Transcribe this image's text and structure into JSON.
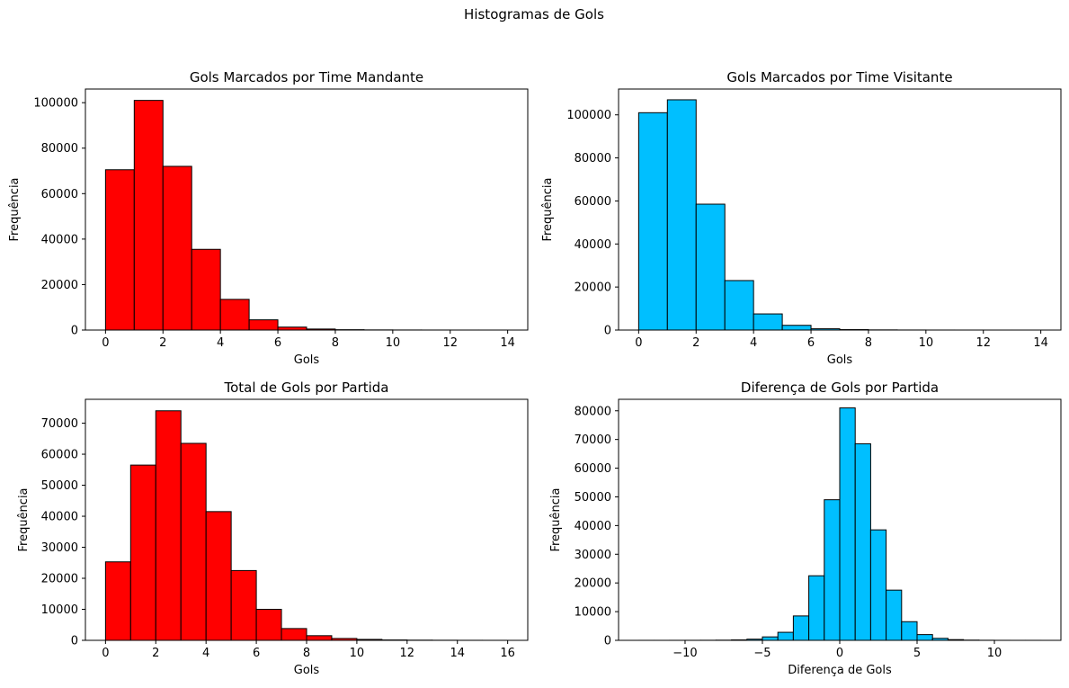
{
  "figure": {
    "suptitle": "Histogramas de Gols"
  },
  "chart_data": [
    {
      "type": "bar",
      "title": "Gols Marcados por Time Mandante",
      "xlabel": "Gols",
      "ylabel": "Frequência",
      "color": "#ff0000",
      "edgecolor": "#000000",
      "bins": [
        [
          0,
          1
        ],
        [
          1,
          2
        ],
        [
          2,
          3
        ],
        [
          3,
          4
        ],
        [
          4,
          5
        ],
        [
          5,
          6
        ],
        [
          6,
          7
        ],
        [
          7,
          8
        ],
        [
          8,
          9
        ],
        [
          9,
          10
        ],
        [
          10,
          11
        ],
        [
          11,
          12
        ],
        [
          12,
          13
        ],
        [
          13,
          14
        ]
      ],
      "values": [
        70500,
        101000,
        72000,
        35500,
        13500,
        4500,
        1300,
        450,
        150,
        60,
        30,
        15,
        8,
        5
      ],
      "xlim": [
        -0.7,
        14.7
      ],
      "ylim": [
        0,
        106000
      ],
      "xticks": [
        0,
        2,
        4,
        6,
        8,
        10,
        12,
        14
      ],
      "xtick_labels": [
        "0",
        "2",
        "4",
        "6",
        "8",
        "10",
        "12",
        "14"
      ],
      "yticks": [
        0,
        20000,
        40000,
        60000,
        80000,
        100000
      ],
      "ytick_labels": [
        "0",
        "20000",
        "40000",
        "60000",
        "80000",
        "100000"
      ]
    },
    {
      "type": "bar",
      "title": "Gols Marcados por Time Visitante",
      "xlabel": "Gols",
      "ylabel": "Frequência",
      "color": "#00bfff",
      "edgecolor": "#000000",
      "bins": [
        [
          0,
          1
        ],
        [
          1,
          2
        ],
        [
          2,
          3
        ],
        [
          3,
          4
        ],
        [
          4,
          5
        ],
        [
          5,
          6
        ],
        [
          6,
          7
        ],
        [
          7,
          8
        ],
        [
          8,
          9
        ],
        [
          9,
          10
        ],
        [
          10,
          11
        ],
        [
          11,
          12
        ],
        [
          12,
          13
        ],
        [
          13,
          14
        ]
      ],
      "values": [
        101000,
        107000,
        58500,
        23000,
        7500,
        2200,
        600,
        200,
        70,
        25,
        10,
        5,
        3,
        2
      ],
      "xlim": [
        -0.7,
        14.7
      ],
      "ylim": [
        0,
        112000
      ],
      "xticks": [
        0,
        2,
        4,
        6,
        8,
        10,
        12,
        14
      ],
      "xtick_labels": [
        "0",
        "2",
        "4",
        "6",
        "8",
        "10",
        "12",
        "14"
      ],
      "yticks": [
        0,
        20000,
        40000,
        60000,
        80000,
        100000
      ],
      "ytick_labels": [
        "0",
        "20000",
        "40000",
        "60000",
        "80000",
        "100000"
      ]
    },
    {
      "type": "bar",
      "title": "Total de Gols por Partida",
      "xlabel": "Gols",
      "ylabel": "Frequência",
      "color": "#ff0000",
      "edgecolor": "#000000",
      "bins": [
        [
          0,
          1
        ],
        [
          1,
          2
        ],
        [
          2,
          3
        ],
        [
          3,
          4
        ],
        [
          4,
          5
        ],
        [
          5,
          6
        ],
        [
          6,
          7
        ],
        [
          7,
          8
        ],
        [
          8,
          9
        ],
        [
          9,
          10
        ],
        [
          10,
          11
        ],
        [
          11,
          12
        ],
        [
          12,
          13
        ],
        [
          13,
          14
        ],
        [
          14,
          15
        ],
        [
          15,
          16
        ]
      ],
      "values": [
        25300,
        56500,
        74000,
        63500,
        41500,
        22500,
        10000,
        3800,
        1500,
        600,
        300,
        120,
        60,
        30,
        15,
        8
      ],
      "xlim": [
        -0.8,
        16.8
      ],
      "ylim": [
        0,
        77700
      ],
      "xticks": [
        0,
        2,
        4,
        6,
        8,
        10,
        12,
        14,
        16
      ],
      "xtick_labels": [
        "0",
        "2",
        "4",
        "6",
        "8",
        "10",
        "12",
        "14",
        "16"
      ],
      "yticks": [
        0,
        10000,
        20000,
        30000,
        40000,
        50000,
        60000,
        70000
      ],
      "ytick_labels": [
        "0",
        "10000",
        "20000",
        "30000",
        "40000",
        "50000",
        "60000",
        "70000"
      ]
    },
    {
      "type": "bar",
      "title": "Diferença de Gols por Partida",
      "xlabel": "Diferença de Gols",
      "ylabel": "Frequência",
      "color": "#00bfff",
      "edgecolor": "#000000",
      "bins": [
        [
          -13,
          -12
        ],
        [
          -12,
          -11
        ],
        [
          -11,
          -10
        ],
        [
          -10,
          -9
        ],
        [
          -9,
          -8
        ],
        [
          -8,
          -7
        ],
        [
          -7,
          -6
        ],
        [
          -6,
          -5
        ],
        [
          -5,
          -4
        ],
        [
          -4,
          -3
        ],
        [
          -3,
          -2
        ],
        [
          -2,
          -1
        ],
        [
          -1,
          0
        ],
        [
          0,
          1
        ],
        [
          1,
          2
        ],
        [
          2,
          3
        ],
        [
          3,
          4
        ],
        [
          4,
          5
        ],
        [
          5,
          6
        ],
        [
          6,
          7
        ],
        [
          7,
          8
        ],
        [
          8,
          9
        ],
        [
          9,
          10
        ],
        [
          10,
          11
        ],
        [
          11,
          12
        ],
        [
          12,
          13
        ]
      ],
      "values": [
        5,
        5,
        10,
        15,
        30,
        60,
        150,
        400,
        1200,
        2800,
        8500,
        22500,
        49000,
        81000,
        68500,
        38500,
        17500,
        6500,
        2000,
        700,
        250,
        80,
        30,
        10,
        5,
        5
      ],
      "xlim": [
        -14.3,
        14.3
      ],
      "ylim": [
        0,
        84000
      ],
      "xticks": [
        -10,
        -5,
        0,
        5,
        10
      ],
      "xtick_labels": [
        "−10",
        "−5",
        "0",
        "5",
        "10"
      ],
      "yticks": [
        0,
        10000,
        20000,
        30000,
        40000,
        50000,
        60000,
        70000,
        80000
      ],
      "ytick_labels": [
        "0",
        "10000",
        "20000",
        "30000",
        "40000",
        "50000",
        "60000",
        "70000",
        "80000"
      ]
    }
  ]
}
